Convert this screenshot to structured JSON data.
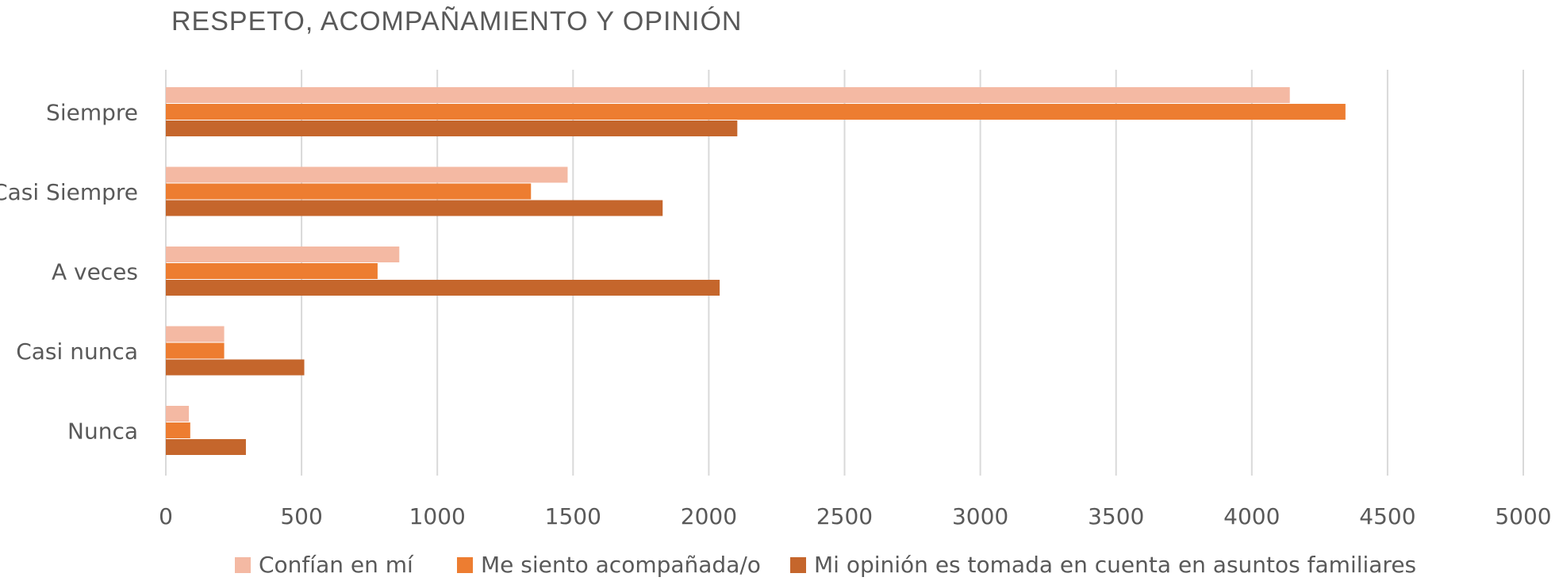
{
  "chart_data": {
    "type": "bar",
    "orientation": "horizontal",
    "title": "RESPETO, ACOMPAÑAMIENTO Y OPINIÓN",
    "categories": [
      "Siempre",
      "Casi Siempre",
      "A veces",
      "Casi nunca",
      "Nunca"
    ],
    "series": [
      {
        "name": "Confían en mí",
        "color": "#F4B9A3",
        "values": [
          4140,
          1480,
          860,
          215,
          85
        ]
      },
      {
        "name": "Me siento acompañada/o",
        "color": "#ED7D31",
        "values": [
          4345,
          1345,
          780,
          215,
          90
        ]
      },
      {
        "name": "Mi opinión es tomada en cuenta en asuntos familiares",
        "color": "#C5662C",
        "values": [
          2105,
          1830,
          2040,
          510,
          295
        ]
      }
    ],
    "xlim": [
      0,
      5000
    ],
    "x_ticks": [
      "0",
      "500",
      "1000",
      "1500",
      "2000",
      "2500",
      "3000",
      "3500",
      "4000",
      "4500",
      "5000"
    ],
    "grid": true,
    "legend_position": "bottom"
  }
}
